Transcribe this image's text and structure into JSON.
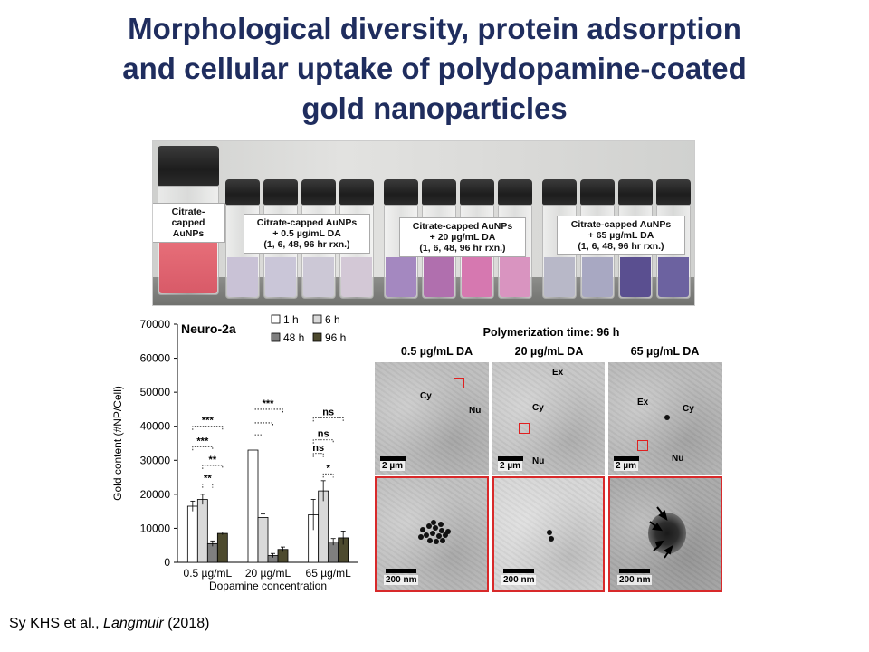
{
  "title": {
    "line1": "Morphological diversity, protein adsorption",
    "line2": "and cellular uptake of polydopamine-coated",
    "line3": "gold nanoparticles"
  },
  "photo": {
    "labels": [
      {
        "l1": "Citrate-capped",
        "l2": "AuNPs",
        "l3": "",
        "l4": ""
      },
      {
        "l1": "Citrate-capped AuNPs",
        "l2": "+ 0.5 µg/mL DA",
        "l3": "(1, 6, 48, 96 hr rxn.)",
        "l4": ""
      },
      {
        "l1": "Citrate-capped AuNPs",
        "l2": "+ 20 µg/mL DA",
        "l3": "(1, 6, 48, 96 hr rxn.)",
        "l4": ""
      },
      {
        "l1": "Citrate-capped AuNPs",
        "l2": "+ 65 µg/mL DA",
        "l3": "(1, 6, 48, 96 hr rxn.)",
        "l4": ""
      }
    ],
    "colors": {
      "citrate": "#e8707a",
      "da05": [
        "#c9c2d6",
        "#cac6d8",
        "#ccc8d6",
        "#d3c8d6"
      ],
      "da20": [
        "#a488c0",
        "#b06fae",
        "#d678b0",
        "#d994c0"
      ],
      "da65": [
        "#b8b8c8",
        "#a8a8c2",
        "#5a4f90",
        "#6c62a0"
      ]
    }
  },
  "chart_data": {
    "type": "bar",
    "title": "Neuro-2a",
    "xlabel": "Dopamine concentration",
    "ylabel": "Gold content (#NP/Cell)",
    "ylim": [
      0,
      70000
    ],
    "yticks": [
      "0",
      "10000",
      "20000",
      "30000",
      "40000",
      "50000",
      "60000",
      "70000"
    ],
    "categories": [
      "0.5 µg/mL",
      "20 µg/mL",
      "65 µg/mL"
    ],
    "series": [
      {
        "name": "1 h",
        "color": "#ffffff",
        "values": [
          16500,
          33000,
          14000
        ],
        "errors": [
          1500,
          1200,
          4500
        ]
      },
      {
        "name": "6 h",
        "color": "#d9d9d9",
        "values": [
          18500,
          13200,
          21000
        ],
        "errors": [
          1500,
          1000,
          3000
        ]
      },
      {
        "name": "48 h",
        "color": "#7f7f7f",
        "values": [
          5500,
          2000,
          6000
        ],
        "errors": [
          800,
          600,
          1000
        ]
      },
      {
        "name": "96 h",
        "color": "#4d4a2e",
        "values": [
          8500,
          3800,
          7200
        ],
        "errors": [
          400,
          700,
          2000
        ]
      }
    ],
    "significance": [
      {
        "group": 0,
        "from": 0,
        "to": 3,
        "label": "***",
        "y": 40000
      },
      {
        "group": 0,
        "from": 0,
        "to": 2,
        "label": "***",
        "y": 34000
      },
      {
        "group": 0,
        "from": 1,
        "to": 3,
        "label": "**",
        "y": 28500
      },
      {
        "group": 0,
        "from": 1,
        "to": 2,
        "label": "**",
        "y": 23000
      },
      {
        "group": 1,
        "from": 0,
        "to": 3,
        "label": "***",
        "y": 45000
      },
      {
        "group": 1,
        "from": 0,
        "to": 2,
        "label": "",
        "y": 41000
      },
      {
        "group": 1,
        "from": 0,
        "to": 1,
        "label": "",
        "y": 37500
      },
      {
        "group": 2,
        "from": 0,
        "to": 3,
        "label": "ns",
        "y": 42500
      },
      {
        "group": 2,
        "from": 0,
        "to": 2,
        "label": "ns",
        "y": 36000
      },
      {
        "group": 2,
        "from": 0,
        "to": 1,
        "label": "ns",
        "y": 32000
      },
      {
        "group": 2,
        "from": 1,
        "to": 2,
        "label": "*",
        "y": 26000
      }
    ]
  },
  "tem": {
    "header": "Polymerization time: 96 h",
    "columns": [
      "0.5 µg/mL DA",
      "20 µg/mL DA",
      "65 µg/mL DA"
    ],
    "top": [
      {
        "labels": [
          "Cy",
          "Nu"
        ],
        "scale": "2 µm"
      },
      {
        "labels": [
          "Ex",
          "Cy",
          "Nu"
        ],
        "scale": "2 µm"
      },
      {
        "labels": [
          "Ex",
          "Cy",
          "Nu"
        ],
        "scale": "2 µm"
      }
    ],
    "bottom": [
      {
        "scale": "200 nm"
      },
      {
        "scale": "200 nm"
      },
      {
        "scale": "200 nm"
      }
    ]
  },
  "citation": {
    "authors": "Sy KHS et al., ",
    "journal": "Langmuir",
    "year": " (2018)"
  }
}
